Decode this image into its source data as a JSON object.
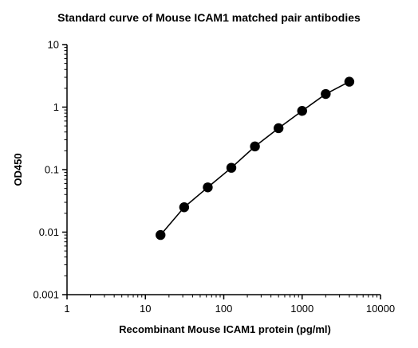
{
  "chart_data": {
    "type": "scatter",
    "title": "Standard curve of Mouse ICAM1 matched pair antibodies",
    "xlabel": "Recombinant Mouse ICAM1 protein (pg/ml)",
    "ylabel": "OD450",
    "xscale": "log",
    "yscale": "log",
    "xlim": [
      1,
      10000
    ],
    "ylim": [
      0.001,
      10
    ],
    "x_ticks": [
      "1",
      "10",
      "100",
      "1000",
      "10000"
    ],
    "y_ticks": [
      "0.001",
      "0.01",
      "0.1",
      "1",
      "10"
    ],
    "grid": false,
    "legend": "none",
    "connected_line": true,
    "series": [
      {
        "x": [
          15.6,
          31.25,
          62.5,
          125,
          250,
          500,
          1000,
          2000,
          4000
        ],
        "y": [
          0.009,
          0.025,
          0.052,
          0.107,
          0.235,
          0.46,
          0.87,
          1.62,
          2.55
        ]
      }
    ],
    "colors": {
      "marker": "#000000",
      "line": "#000000"
    }
  }
}
